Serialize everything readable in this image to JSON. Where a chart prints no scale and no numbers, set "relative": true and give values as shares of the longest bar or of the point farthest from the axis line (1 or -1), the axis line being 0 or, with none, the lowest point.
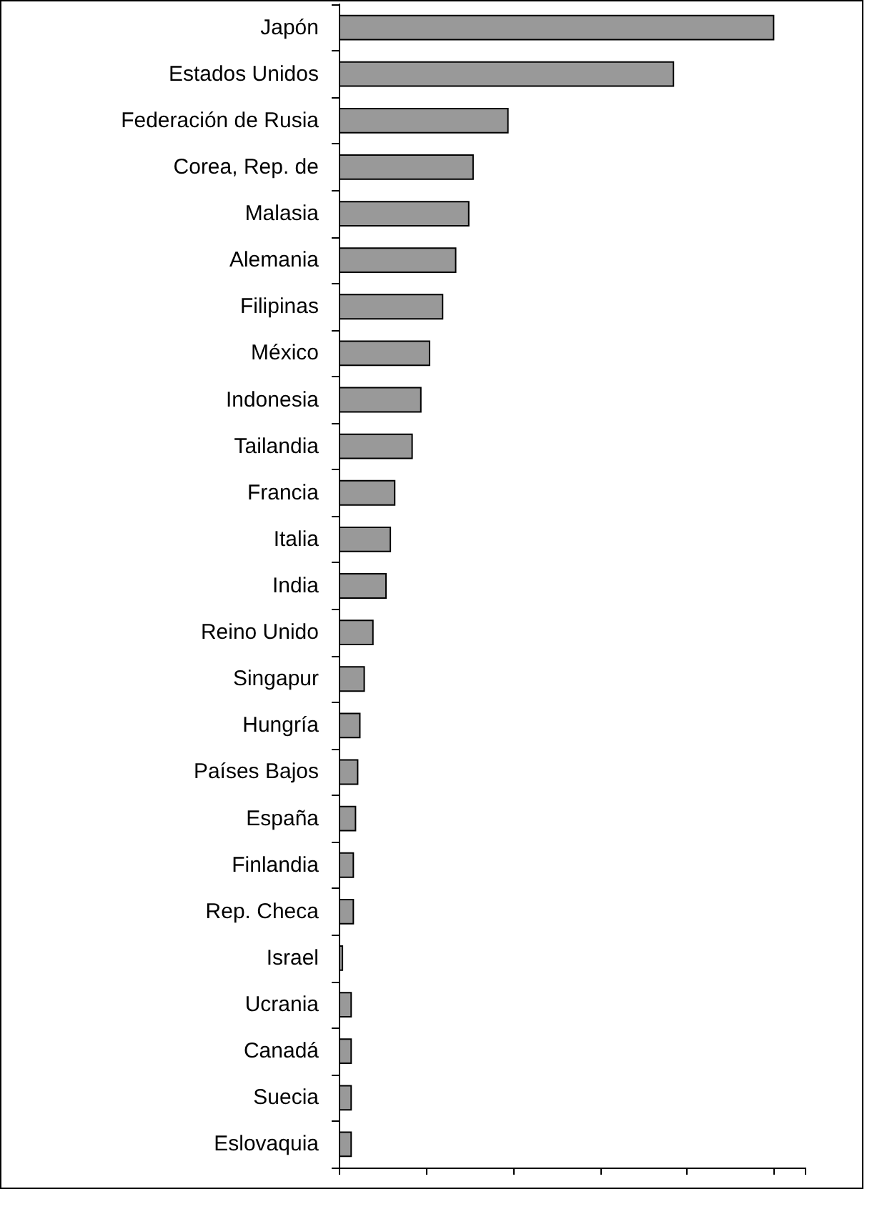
{
  "chart_data": {
    "type": "bar",
    "orientation": "horizontal",
    "relative": true,
    "color": "#999999",
    "categories": [
      "Japón",
      "Estados Unidos",
      "Federación de Rusia",
      "Corea, Rep. de",
      "Malasia",
      "Alemania",
      "Filipinas",
      "México",
      "Indonesia",
      "Tailandia",
      "Francia",
      "Italia",
      "India",
      "Reino Unido",
      "Singapur",
      "Hungría",
      "Países Bajos",
      "España",
      "Finlandia",
      "Rep. Checa",
      "Israel",
      "Ucrania",
      "Canadá",
      "Suecia",
      "Eslovaquia"
    ],
    "values": [
      1,
      0.77,
      0.39,
      0.31,
      0.3,
      0.27,
      0.24,
      0.21,
      0.19,
      0.17,
      0.13,
      0.12,
      0.11,
      0.08,
      0.06,
      0.05,
      0.045,
      0.04,
      0.035,
      0.035,
      0.01,
      0.03,
      0.03,
      0.03,
      0.03
    ],
    "grid": false
  }
}
